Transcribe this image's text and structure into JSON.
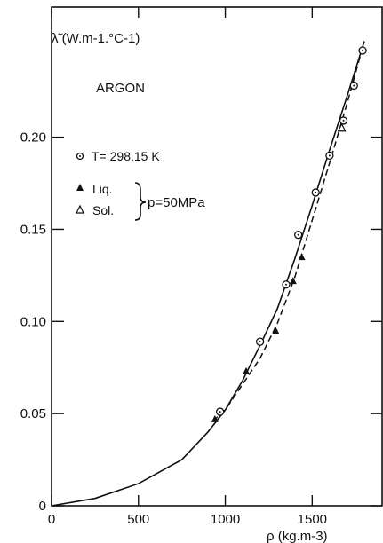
{
  "chart_data": {
    "type": "scatter",
    "title": "ARGON",
    "ylabel": "λ̃ (W.m-1.°C-1)",
    "xlabel": "ρ (kg.m-3)",
    "xlim": [
      0,
      1800
    ],
    "ylim": [
      0,
      0.26
    ],
    "grid": false,
    "x_ticks": [
      0,
      500,
      1000,
      1500
    ],
    "x_tick_labels": [
      "0",
      "500",
      "1000",
      "1500"
    ],
    "y_ticks": [
      0,
      0.05,
      0.1,
      0.15,
      0.2
    ],
    "y_tick_labels": [
      "0",
      "0.05",
      "0.10",
      "0.15",
      "0.20"
    ],
    "legend": {
      "placement": "upper-left",
      "entries": [
        {
          "marker": "circle-dot",
          "label": "T= 298.15 K"
        },
        {
          "marker": "filled-triangle",
          "label": "Liq."
        },
        {
          "marker": "open-triangle",
          "label": "Sol."
        }
      ],
      "group_label": "p=50MPa"
    },
    "series": [
      {
        "marker": "circle-dot",
        "x": [
          970,
          1200,
          1350,
          1420,
          1520,
          1600,
          1680,
          1740,
          1790
        ],
        "y": [
          0.051,
          0.089,
          0.12,
          0.147,
          0.17,
          0.19,
          0.209,
          0.228,
          0.247
        ]
      },
      {
        "marker": "filled-triangle",
        "x": [
          940,
          1120,
          1290,
          1390,
          1440
        ],
        "y": [
          0.047,
          0.073,
          0.095,
          0.122,
          0.135
        ]
      },
      {
        "marker": "open-triangle",
        "x": [
          1670
        ],
        "y": [
          0.205
        ]
      },
      {
        "style": "solid-line",
        "x": [
          0,
          250,
          500,
          750,
          900,
          1000,
          1100,
          1200,
          1300,
          1400,
          1500,
          1600,
          1700,
          1800
        ],
        "y": [
          0,
          0.004,
          0.012,
          0.025,
          0.04,
          0.052,
          0.068,
          0.087,
          0.107,
          0.134,
          0.163,
          0.193,
          0.222,
          0.252
        ]
      },
      {
        "style": "dashed-line",
        "x": [
          930,
          1000,
          1100,
          1200,
          1300,
          1400,
          1500,
          1600,
          1700,
          1800
        ],
        "y": [
          0.046,
          0.052,
          0.066,
          0.08,
          0.099,
          0.124,
          0.155,
          0.186,
          0.218,
          0.252
        ]
      }
    ]
  }
}
